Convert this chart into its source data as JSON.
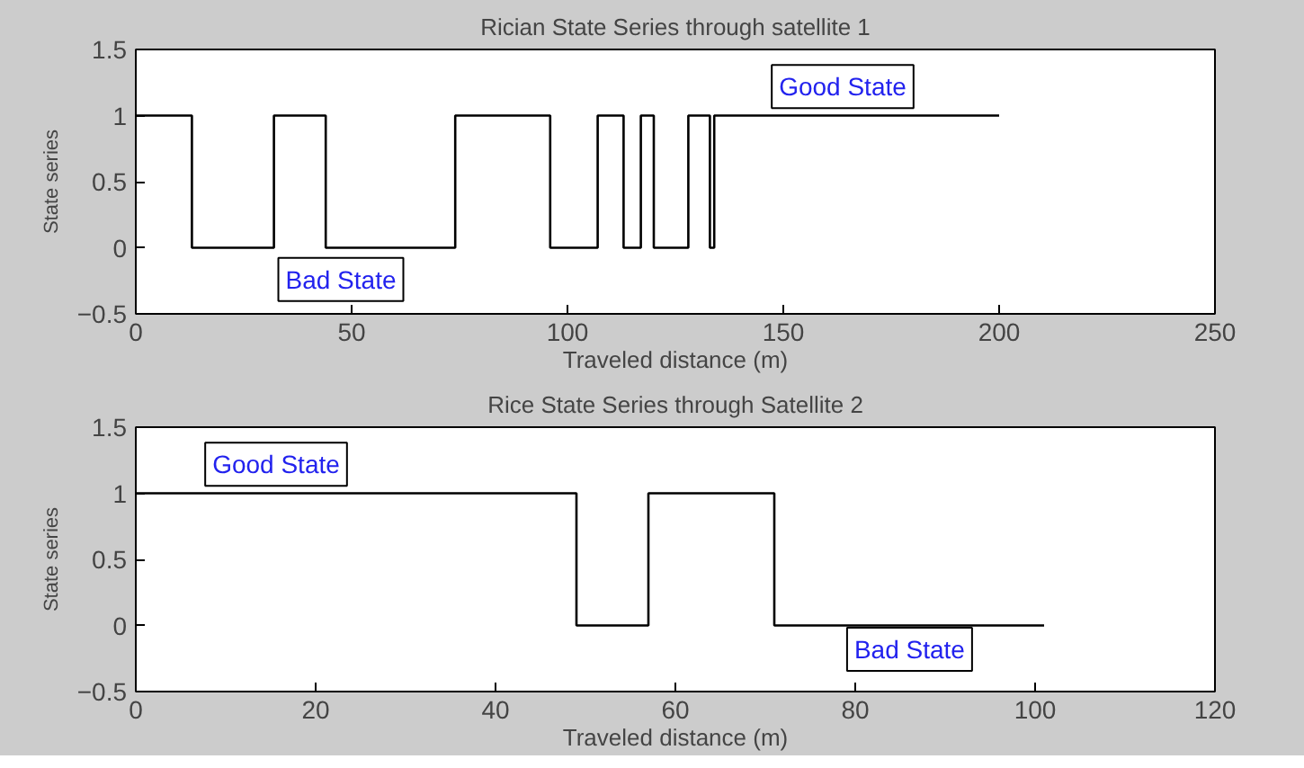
{
  "chart_data": [
    {
      "type": "step",
      "title": "Rician State Series through satellite 1",
      "xlabel": "Traveled distance (m)",
      "ylabel": "State series",
      "x": [
        0,
        13,
        32,
        44,
        74,
        96,
        107,
        113,
        117,
        120,
        128,
        133,
        134,
        200
      ],
      "series": [
        {
          "color": "#000000",
          "values": [
            1,
            0,
            1,
            0,
            1,
            0,
            1,
            0,
            1,
            0,
            1,
            0,
            1,
            1
          ]
        }
      ],
      "xlim": [
        0,
        250
      ],
      "xticks": [
        0,
        50,
        100,
        150,
        200,
        250
      ],
      "ylim": [
        -0.5,
        1.5
      ],
      "yticks": [
        -0.5,
        0,
        0.5,
        1,
        1.5
      ],
      "grid": false,
      "annotations": [
        "Bad State",
        "Good State"
      ]
    },
    {
      "type": "step",
      "title": "Rice State Series through Satellite 2",
      "xlabel": "Traveled distance (m)",
      "ylabel": "State series",
      "x": [
        0,
        49,
        57,
        71,
        101
      ],
      "series": [
        {
          "color": "#000000",
          "values": [
            1,
            0,
            1,
            0,
            0
          ]
        }
      ],
      "xlim": [
        0,
        120
      ],
      "xticks": [
        0,
        20,
        40,
        60,
        80,
        100,
        120
      ],
      "ylim": [
        -0.5,
        1.5
      ],
      "yticks": [
        -0.5,
        0,
        0.5,
        1,
        1.5
      ],
      "grid": false,
      "annotations": [
        "Good State",
        "Bad State"
      ]
    }
  ]
}
